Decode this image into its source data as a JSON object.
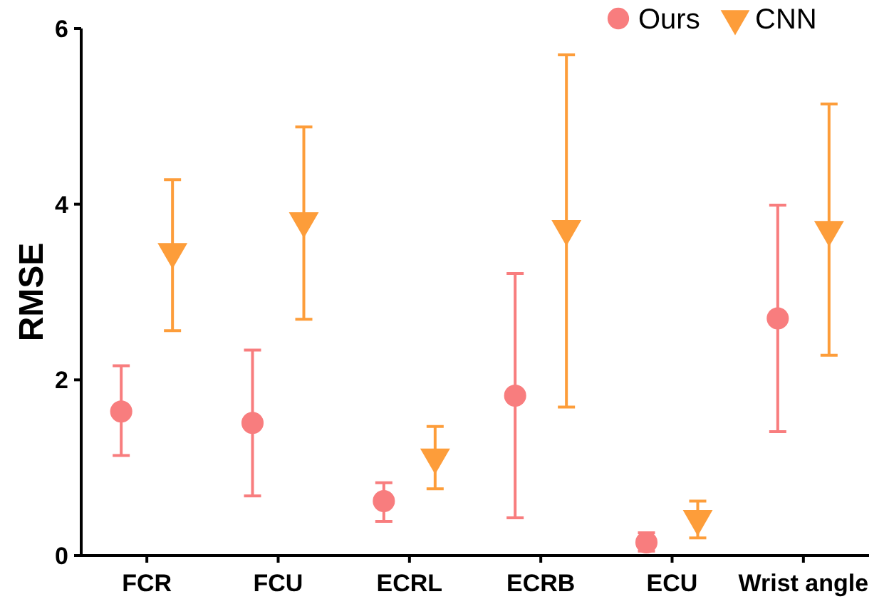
{
  "chart_data": {
    "type": "scatter",
    "ylabel": "RMSE",
    "categories": [
      "FCR",
      "FCU",
      "ECRL",
      "ECRB",
      "ECU",
      "Wrist angle"
    ],
    "ylim": [
      0,
      6
    ],
    "yticks": [
      0,
      2,
      4,
      6
    ],
    "grid": false,
    "legend": "top right",
    "series": [
      {
        "name": "Ours",
        "color": "#f87d7e",
        "marker": "circle",
        "values": [
          1.64,
          1.51,
          0.62,
          1.82,
          0.15,
          2.7
        ],
        "errors": [
          [
            1.14,
            2.16
          ],
          [
            0.68,
            2.34
          ],
          [
            0.39,
            0.83
          ],
          [
            0.43,
            3.21
          ],
          [
            0.05,
            0.26
          ],
          [
            1.41,
            3.99
          ]
        ]
      },
      {
        "name": "CNN",
        "color": "#fd9d3a",
        "marker": "triangle",
        "values": [
          3.46,
          3.81,
          1.12,
          3.72,
          0.42,
          3.71
        ],
        "errors": [
          [
            2.56,
            4.28
          ],
          [
            2.69,
            4.88
          ],
          [
            0.76,
            1.47
          ],
          [
            1.69,
            5.7
          ],
          [
            0.2,
            0.62
          ],
          [
            2.28,
            5.14
          ]
        ]
      }
    ]
  }
}
